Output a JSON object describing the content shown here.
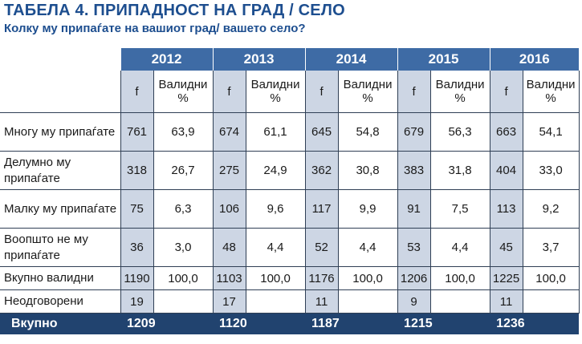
{
  "title": "ТАБЕЛА 4. ПРИПАДНОСТ НА ГРАД / СЕЛО",
  "subtitle": "Колку му припаѓате на вашиот град/ вашето село?",
  "years": [
    "2012",
    "2013",
    "2014",
    "2015",
    "2016"
  ],
  "sub_headers": {
    "f": "f",
    "valid": "Валидни %"
  },
  "rows": [
    {
      "label": "Многу му припаѓате",
      "cells": [
        "761",
        "63,9",
        "674",
        "61,1",
        "645",
        "54,8",
        "679",
        "56,3",
        "663",
        "54,1"
      ]
    },
    {
      "label": "Делумно му припаѓате",
      "cells": [
        "318",
        "26,7",
        "275",
        "24,9",
        "362",
        "30,8",
        "383",
        "31,8",
        "404",
        "33,0"
      ]
    },
    {
      "label": "Малку му припаѓате",
      "cells": [
        "75",
        "6,3",
        "106",
        "9,6",
        "117",
        "9,9",
        "91",
        "7,5",
        "113",
        "9,2"
      ]
    },
    {
      "label": "Воопшто не му припаѓате",
      "cells": [
        "36",
        "3,0",
        "48",
        "4,4",
        "52",
        "4,4",
        "53",
        "4,4",
        "45",
        "3,7"
      ]
    },
    {
      "label": "Вкупно валидни",
      "cells": [
        "1190",
        "100,0",
        "1103",
        "100,0",
        "1176",
        "100,0",
        "1206",
        "100,0",
        "1225",
        "100,0"
      ]
    },
    {
      "label": "Неодговорени",
      "cells": [
        "19",
        "",
        "17",
        "",
        "11",
        "",
        "9",
        "",
        "11",
        ""
      ]
    }
  ],
  "total": {
    "label": "Вкупно",
    "cells": [
      "1209",
      "",
      "1120",
      "",
      "1187",
      "",
      "1215",
      "",
      "1236",
      ""
    ]
  }
}
